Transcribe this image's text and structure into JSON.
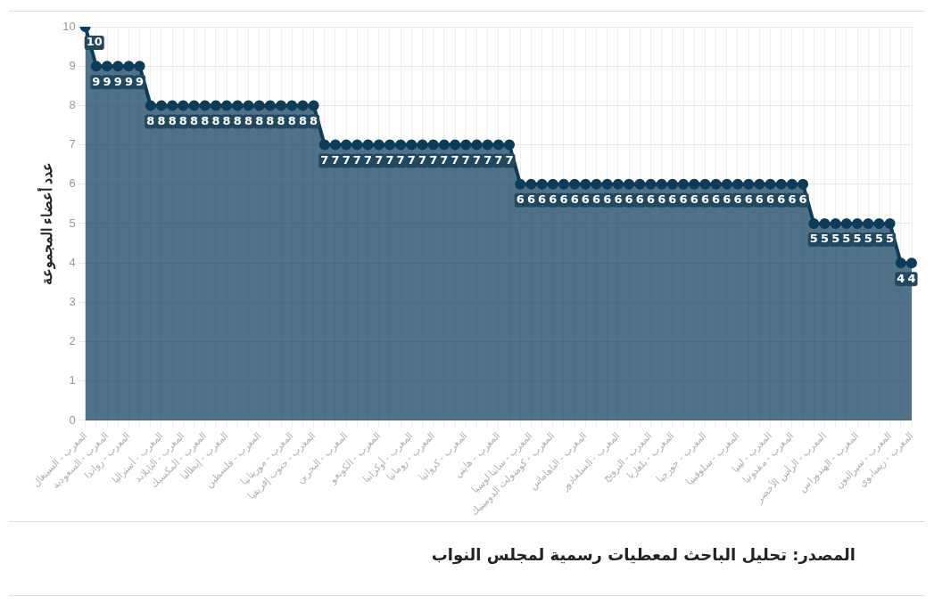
{
  "chart_data": {
    "type": "area",
    "ylabel": "عدد أعضاء المجموعة",
    "annotations": [
      "المصدر: تحليل الباحث لمعطيات رسمية لمجلس النواب"
    ],
    "categories": [
      "المغرب - السينغال",
      null,
      "المغرب - السعودية",
      null,
      "المغرب - رواندا",
      null,
      null,
      "المغرب - أستراليا",
      null,
      "المغرب - التايلاند",
      null,
      "المغرب - المكسيك",
      null,
      "المغرب - إيطاليا",
      null,
      null,
      "المغرب - فلسطين",
      null,
      null,
      "المغرب - موريتانيا",
      null,
      "المغرب - جنوب إفريقيا",
      null,
      null,
      "المغرب - البحرين",
      null,
      null,
      "المغرب - الكونغو",
      null,
      null,
      "المغرب - أوكرانيا",
      null,
      "المغرب - رومانيا",
      null,
      null,
      "المغرب - كرواتيا",
      null,
      null,
      "المغرب - هايتي",
      null,
      null,
      "المغرب - سانتا لوسيا",
      null,
      "المغرب - كومنولث الدومينيك",
      null,
      null,
      "المغرب - الباهاماس",
      null,
      null,
      "المغرب - السلفادور",
      null,
      null,
      "المغرب - النرويج",
      null,
      "المغرب - بلغاريا",
      null,
      null,
      "المغرب - جورجيا",
      null,
      null,
      "المغرب - سلوفينيا",
      null,
      null,
      "المغرب - ليبيا",
      null,
      "المغرب - مقدونيا",
      null,
      null,
      "المغرب - الرأس الأخضر",
      null,
      null,
      "المغرب - الهندوراس",
      null,
      null,
      "المغرب - سيراليون",
      null,
      "المغرب - زيمبابوي"
    ],
    "values": [
      10,
      9,
      9,
      9,
      9,
      9,
      8,
      8,
      8,
      8,
      8,
      8,
      8,
      8,
      8,
      8,
      8,
      8,
      8,
      8,
      8,
      8,
      7,
      7,
      7,
      7,
      7,
      7,
      7,
      7,
      7,
      7,
      7,
      7,
      7,
      7,
      7,
      7,
      7,
      7,
      6,
      6,
      6,
      6,
      6,
      6,
      6,
      6,
      6,
      6,
      6,
      6,
      6,
      6,
      6,
      6,
      6,
      6,
      6,
      6,
      6,
      6,
      6,
      6,
      6,
      6,
      6,
      5,
      5,
      5,
      5,
      5,
      5,
      5,
      5,
      4,
      4
    ],
    "color": "#0d3c5a",
    "ylim": [
      0,
      10
    ],
    "yticks": [
      0,
      1,
      2,
      3,
      4,
      5,
      6,
      7,
      8,
      9,
      10
    ],
    "grid": true,
    "marker": "circle",
    "data_labels": true
  }
}
